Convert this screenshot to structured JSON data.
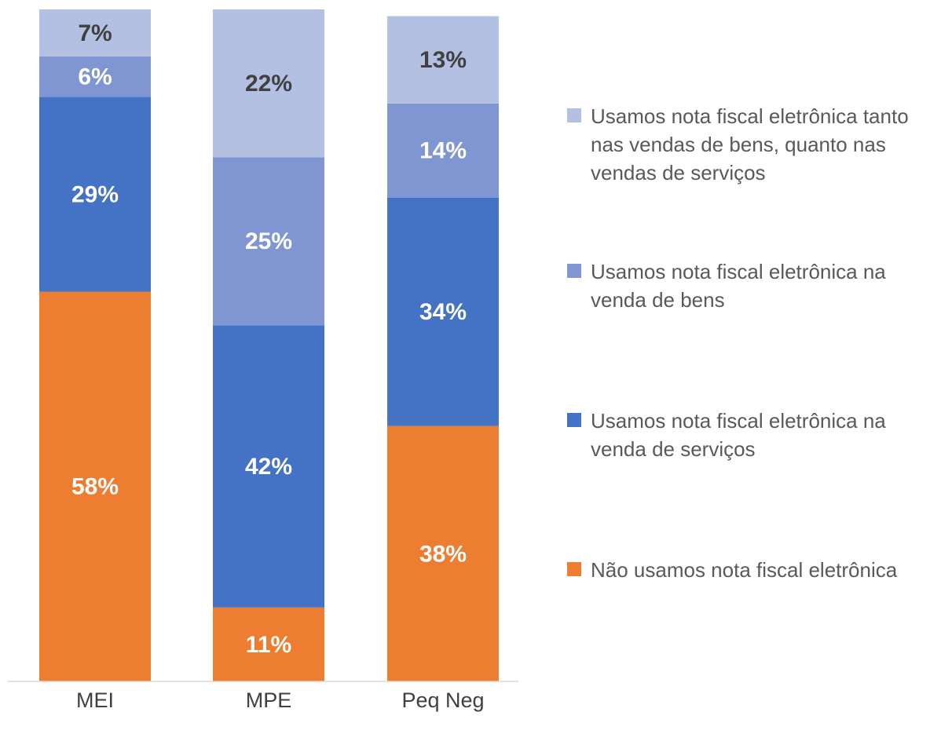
{
  "chart_data": {
    "type": "bar",
    "stacked": true,
    "categories": [
      "MEI",
      "MPE",
      "Peq Neg"
    ],
    "ylim": [
      0,
      100
    ],
    "series": [
      {
        "name": "Não usamos nota fiscal eletrônica",
        "color": "#ED7D31",
        "label_color": "#ffffff",
        "values": [
          58,
          11,
          38
        ],
        "value_labels": [
          "58%",
          "11%",
          "38%"
        ]
      },
      {
        "name": "Usamos nota fiscal eletrônica na venda de serviços",
        "color": "#4472C4",
        "label_color": "#ffffff",
        "values": [
          29,
          42,
          34
        ],
        "value_labels": [
          "29%",
          "42%",
          "34%"
        ]
      },
      {
        "name": "Usamos nota fiscal eletrônica na venda de bens",
        "color": "#7F96D3",
        "label_color": "#ffffff",
        "values": [
          6,
          25,
          14
        ],
        "value_labels": [
          "6%",
          "25%",
          "14%"
        ]
      },
      {
        "name": "Usamos nota fiscal eletrônica tanto nas vendas de bens, quanto nas vendas de serviços",
        "color": "#B4C0E1",
        "label_color": "#404040",
        "values": [
          7,
          22,
          13
        ],
        "value_labels": [
          "7%",
          "22%",
          "13%"
        ]
      }
    ]
  }
}
